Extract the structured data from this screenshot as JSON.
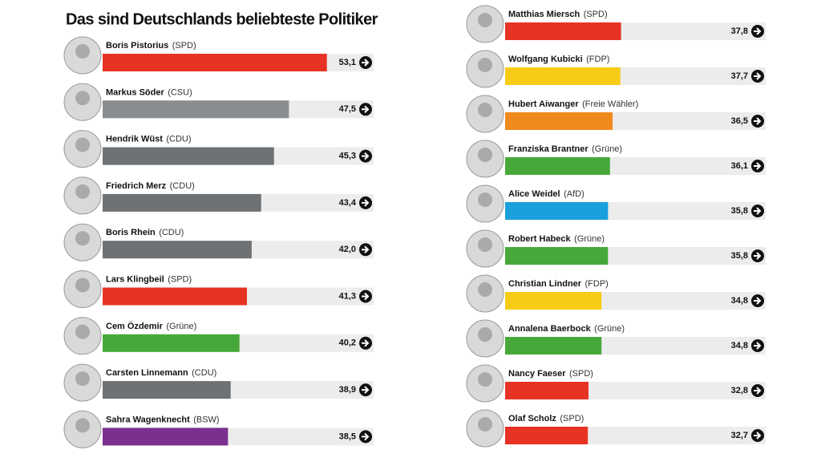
{
  "chart_data": {
    "type": "bar",
    "title": "Das sind Deutschlands beliebteste Politiker",
    "categories": [
      "Boris Pistorius",
      "Markus Söder",
      "Hendrik Wüst",
      "Friedrich Merz",
      "Boris Rhein",
      "Lars Klingbeil",
      "Cem Özdemir",
      "Carsten Linnemann",
      "Sahra Wagenknecht",
      "Matthias Miersch",
      "Wolfgang Kubicki",
      "Hubert Aiwanger",
      "Franziska Brantner",
      "Alice Weidel",
      "Robert Habeck",
      "Christian Lindner",
      "Annalena Baerbock",
      "Nancy Faeser",
      "Olaf Scholz"
    ],
    "parties": [
      "(SPD)",
      "(CSU)",
      "(CDU)",
      "(CDU)",
      "(CDU)",
      "(SPD)",
      "(Grüne)",
      "(CDU)",
      "(BSW)",
      "(SPD)",
      "(FDP)",
      "(Freie Wähler)",
      "(Grüne)",
      "(AfD)",
      "(Grüne)",
      "(FDP)",
      "(Grüne)",
      "(SPD)",
      "(SPD)"
    ],
    "values": [
      53.1,
      47.5,
      45.3,
      43.4,
      42.0,
      41.3,
      40.2,
      38.9,
      38.5,
      37.8,
      37.7,
      36.5,
      36.1,
      35.8,
      35.8,
      34.8,
      34.8,
      32.8,
      32.7
    ],
    "value_labels": [
      "53,1",
      "47,5",
      "45,3",
      "43,4",
      "42,0",
      "41,3",
      "40,2",
      "38,9",
      "38,5",
      "37,8",
      "37,7",
      "36,5",
      "36,1",
      "35,8",
      "35,8",
      "34,8",
      "34,8",
      "32,8",
      "32,7"
    ],
    "colors": [
      "#e63323",
      "#8a8d90",
      "#6f7275",
      "#6f7275",
      "#6f7275",
      "#e63323",
      "#47a83a",
      "#6f7275",
      "#7b2f8e",
      "#e63323",
      "#f6cc17",
      "#f08a1c",
      "#47a83a",
      "#1aa0dc",
      "#47a83a",
      "#f6cc17",
      "#47a83a",
      "#e63323",
      "#e63323"
    ],
    "xlim": [
      20,
      60
    ]
  }
}
